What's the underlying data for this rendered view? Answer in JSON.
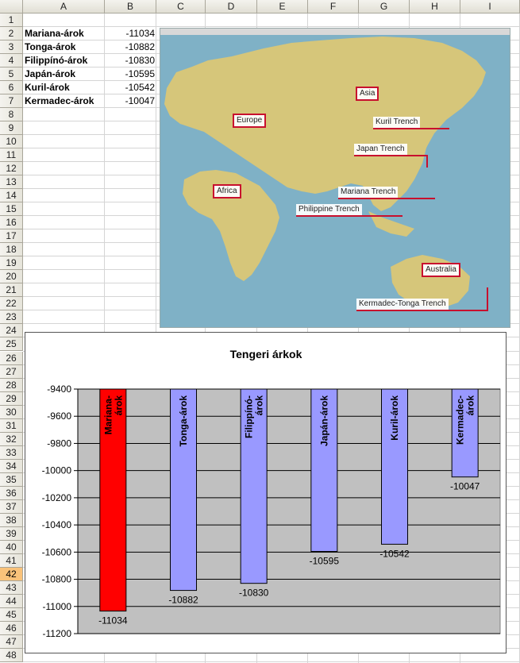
{
  "columns": [
    "A",
    "B",
    "C",
    "D",
    "E",
    "F",
    "G",
    "H",
    "I"
  ],
  "rows": [
    "1",
    "2",
    "3",
    "4",
    "5",
    "6",
    "7",
    "8",
    "9",
    "10",
    "11",
    "12",
    "13",
    "14",
    "15",
    "16",
    "17",
    "18",
    "19",
    "20",
    "21",
    "22",
    "23",
    "24",
    "25",
    "26",
    "27",
    "28",
    "29",
    "30",
    "31",
    "32",
    "33",
    "34",
    "35",
    "36",
    "37",
    "38",
    "39",
    "40",
    "41",
    "42",
    "43",
    "44",
    "45",
    "46",
    "47",
    "48"
  ],
  "selected_row": "42",
  "table": [
    {
      "name": "Mariana-árok",
      "value": "-11034"
    },
    {
      "name": "Tonga-árok",
      "value": "-10882"
    },
    {
      "name": "Filippínó-árok",
      "value": "-10830"
    },
    {
      "name": "Japán-árok",
      "value": "-10595"
    },
    {
      "name": "Kuril-árok",
      "value": "-10542"
    },
    {
      "name": "Kermadec-árok",
      "value": "-10047"
    }
  ],
  "map": {
    "continents": [
      "Asia",
      "Europe",
      "Africa",
      "Australia"
    ],
    "trenches": [
      "Kuril Trench",
      "Japan Trench",
      "Mariana Trench",
      "Philippine Trench",
      "Kermadec-Tonga Trench"
    ],
    "colors": {
      "ocean": "#7fb1c6",
      "land": "#d6c67a",
      "label_border": "#c8102e"
    }
  },
  "chart_data": {
    "type": "bar",
    "title": "Tengeri árkok",
    "categories": [
      "Mariana-árok",
      "Tonga-árok",
      "Filippínó-árok",
      "Japán-árok",
      "Kuril-árok",
      "Kermadec-árok"
    ],
    "values": [
      -11034,
      -10882,
      -10830,
      -10595,
      -10542,
      -10047
    ],
    "value_labels": [
      "-11034",
      "-10882",
      "-10830",
      "-10595",
      "-10542",
      "-10047"
    ],
    "ylim": [
      -11200,
      -9400
    ],
    "yticks": [
      "-9400",
      "-9600",
      "-9800",
      "-10000",
      "-10200",
      "-10400",
      "-10600",
      "-10800",
      "-11000",
      "-11200"
    ],
    "grid": true,
    "colors": {
      "highlight": "#ff0000",
      "bar": "#9999ff",
      "plot_bg": "#c0c0c0"
    }
  }
}
